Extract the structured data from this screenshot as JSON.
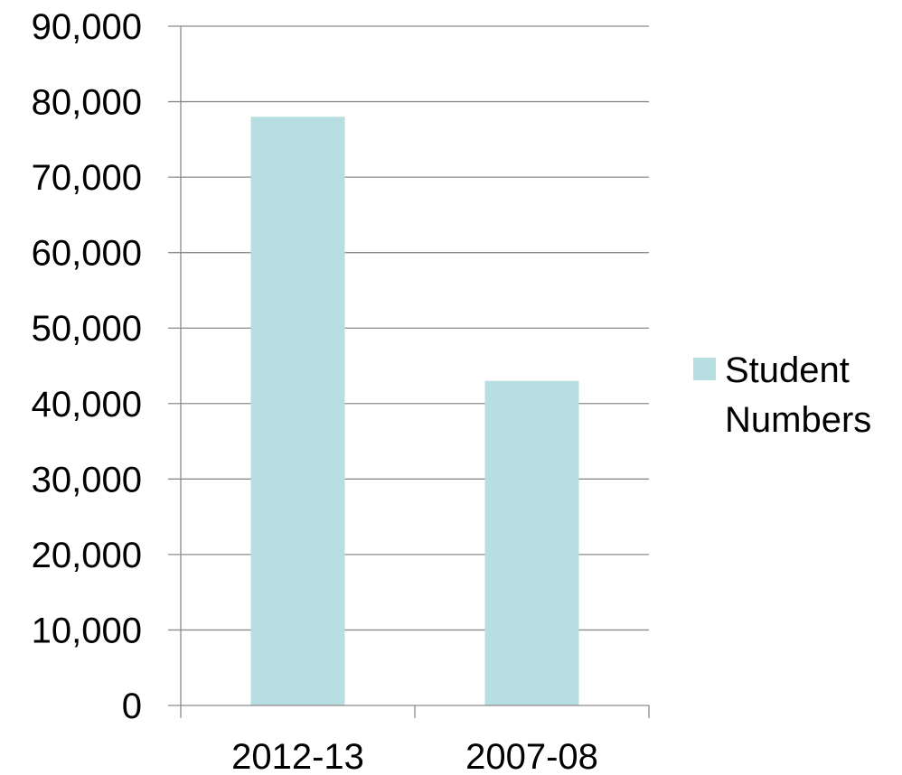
{
  "chart_data": {
    "type": "bar",
    "title": "",
    "xlabel": "",
    "ylabel": "",
    "categories": [
      "2012-13",
      "2007-08"
    ],
    "series": [
      {
        "name": "Student Numbers",
        "values": [
          78000,
          43000
        ],
        "color": "#b7dee1"
      }
    ],
    "ylim": [
      0,
      90000
    ],
    "yticks": [
      "0",
      "10,000",
      "20,000",
      "30,000",
      "40,000",
      "50,000",
      "60,000",
      "70,000",
      "80,000",
      "90,000"
    ],
    "grid": true,
    "legend": {
      "position": "right",
      "lines": [
        "Student",
        "Numbers"
      ]
    }
  },
  "colors": {
    "gridline": "#8c8c8c",
    "axis": "#8c8c8c",
    "bar": "#b7dee1"
  }
}
